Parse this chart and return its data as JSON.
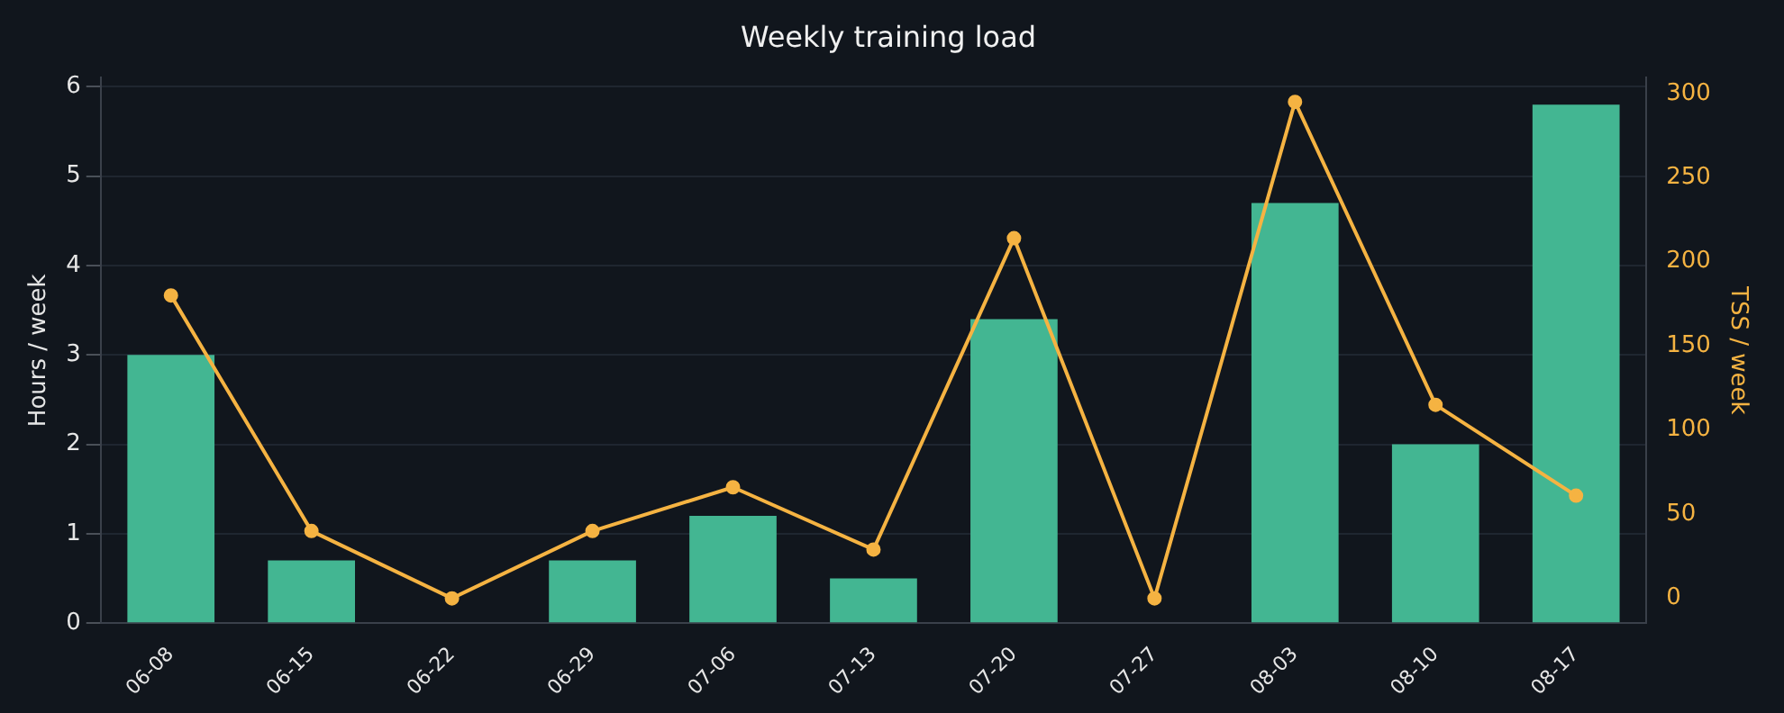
{
  "chart_data": {
    "type": "bar",
    "title": "Weekly training load",
    "ylabel": "Hours / week",
    "y2label": "TSS / week",
    "categories": [
      "06-08",
      "06-15",
      "06-22",
      "06-29",
      "07-06",
      "07-13",
      "07-20",
      "07-27",
      "08-03",
      "08-10",
      "08-17"
    ],
    "series": [
      {
        "color": "#43b692",
        "values": [
          3.0,
          0.7,
          0,
          0.7,
          1.2,
          0.5,
          3.4,
          0,
          4.7,
          2.0,
          5.8
        ]
      },
      {
        "type": "line",
        "axis": "y2",
        "color": "#f5b342",
        "values": [
          180,
          40,
          0,
          40,
          66,
          29,
          214,
          0,
          295,
          115,
          61
        ]
      }
    ],
    "ylim": [
      0,
      6.1
    ],
    "yticks": [
      0,
      1,
      2,
      3,
      4,
      5,
      6
    ],
    "y2lim": [
      -14.7,
      309.3
    ],
    "y2ticks": [
      0,
      50,
      100,
      150,
      200,
      250,
      300
    ],
    "grid": "y",
    "legend": false,
    "marker": "circle",
    "line_style": "solid"
  }
}
